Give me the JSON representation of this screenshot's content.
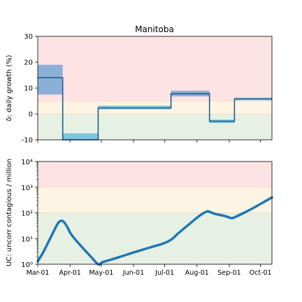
{
  "figure": {
    "title": "Manitoba"
  },
  "colors": {
    "band_red": "#fde3e3",
    "band_yellow": "#fdf4e3",
    "band_green": "#e6f0e3",
    "step_line": "#1f5f8b",
    "step_band_dark": "#7fa9d6",
    "step_band_light": "#6ec1e0",
    "curve": "#1f77b4"
  },
  "chart_data": [
    {
      "type": "line",
      "name": "daily-growth",
      "ylabel": "δ: daily growth (%)",
      "ylim": [
        -10,
        30
      ],
      "yticks": [
        -10,
        0,
        10,
        20,
        30
      ],
      "xlim": [
        0,
        225
      ],
      "xticks": [
        0,
        31,
        61,
        92,
        122,
        153,
        184,
        214
      ],
      "bands": [
        {
          "from": 5,
          "to": 30,
          "color": "band_red"
        },
        {
          "from": 0,
          "to": 5,
          "color": "band_yellow"
        },
        {
          "from": -10,
          "to": 0,
          "color": "band_green"
        }
      ],
      "segments": [
        {
          "x0": 0,
          "x1": 24,
          "value": 14,
          "low": 7.5,
          "high": 19,
          "band": "dark"
        },
        {
          "x0": 24,
          "x1": 58,
          "value": -10,
          "low": -10,
          "high": -7.5,
          "band": "light"
        },
        {
          "x0": 58,
          "x1": 128,
          "value": 2.3,
          "low": 1.8,
          "high": 3.2,
          "band": "light"
        },
        {
          "x0": 128,
          "x1": 165,
          "value": 7.8,
          "low": 6.8,
          "high": 9.0,
          "band": "dark"
        },
        {
          "x0": 165,
          "x1": 189,
          "value": -2.8,
          "low": -3.5,
          "high": -2.2,
          "band": "light"
        },
        {
          "x0": 189,
          "x1": 225,
          "value": 5.8,
          "low": 5.3,
          "high": 6.3,
          "band": "light"
        }
      ]
    },
    {
      "type": "line",
      "name": "uncontrolled-contagious",
      "ylabel": "UC: uncorr contagious / million",
      "yscale": "log",
      "ylim": [
        1,
        10000
      ],
      "yticks": [
        1,
        10,
        100,
        1000,
        10000
      ],
      "ytick_labels": [
        "10⁰",
        "10¹",
        "10²",
        "10³",
        "10⁴"
      ],
      "xlim": [
        0,
        225
      ],
      "xticks": [
        0,
        31,
        61,
        92,
        122,
        153,
        184,
        214
      ],
      "xtick_labels": [
        "Mar-01",
        "Apr-01",
        "May-01",
        "Jun-01",
        "Jul-01",
        "Aug-01",
        "Sep-01",
        "Oct-01"
      ],
      "bands": [
        {
          "from": 1000,
          "to": 10000,
          "color": "band_red"
        },
        {
          "from": 100,
          "to": 1000,
          "color": "band_yellow"
        },
        {
          "from": 1,
          "to": 100,
          "color": "band_green"
        }
      ],
      "x": [
        0,
        5,
        10,
        15,
        20,
        24,
        28,
        32,
        40,
        50,
        58,
        62,
        70,
        80,
        90,
        100,
        110,
        120,
        128,
        135,
        145,
        155,
        162,
        165,
        170,
        180,
        186,
        190,
        200,
        210,
        225
      ],
      "y": [
        1.3,
        2.8,
        7,
        18,
        42,
        48,
        30,
        15,
        6,
        2.2,
        1.0,
        1.2,
        1.5,
        2.0,
        2.7,
        3.6,
        4.8,
        6.3,
        9,
        16,
        35,
        75,
        112,
        110,
        92,
        75,
        62,
        70,
        110,
        180,
        400
      ]
    }
  ]
}
